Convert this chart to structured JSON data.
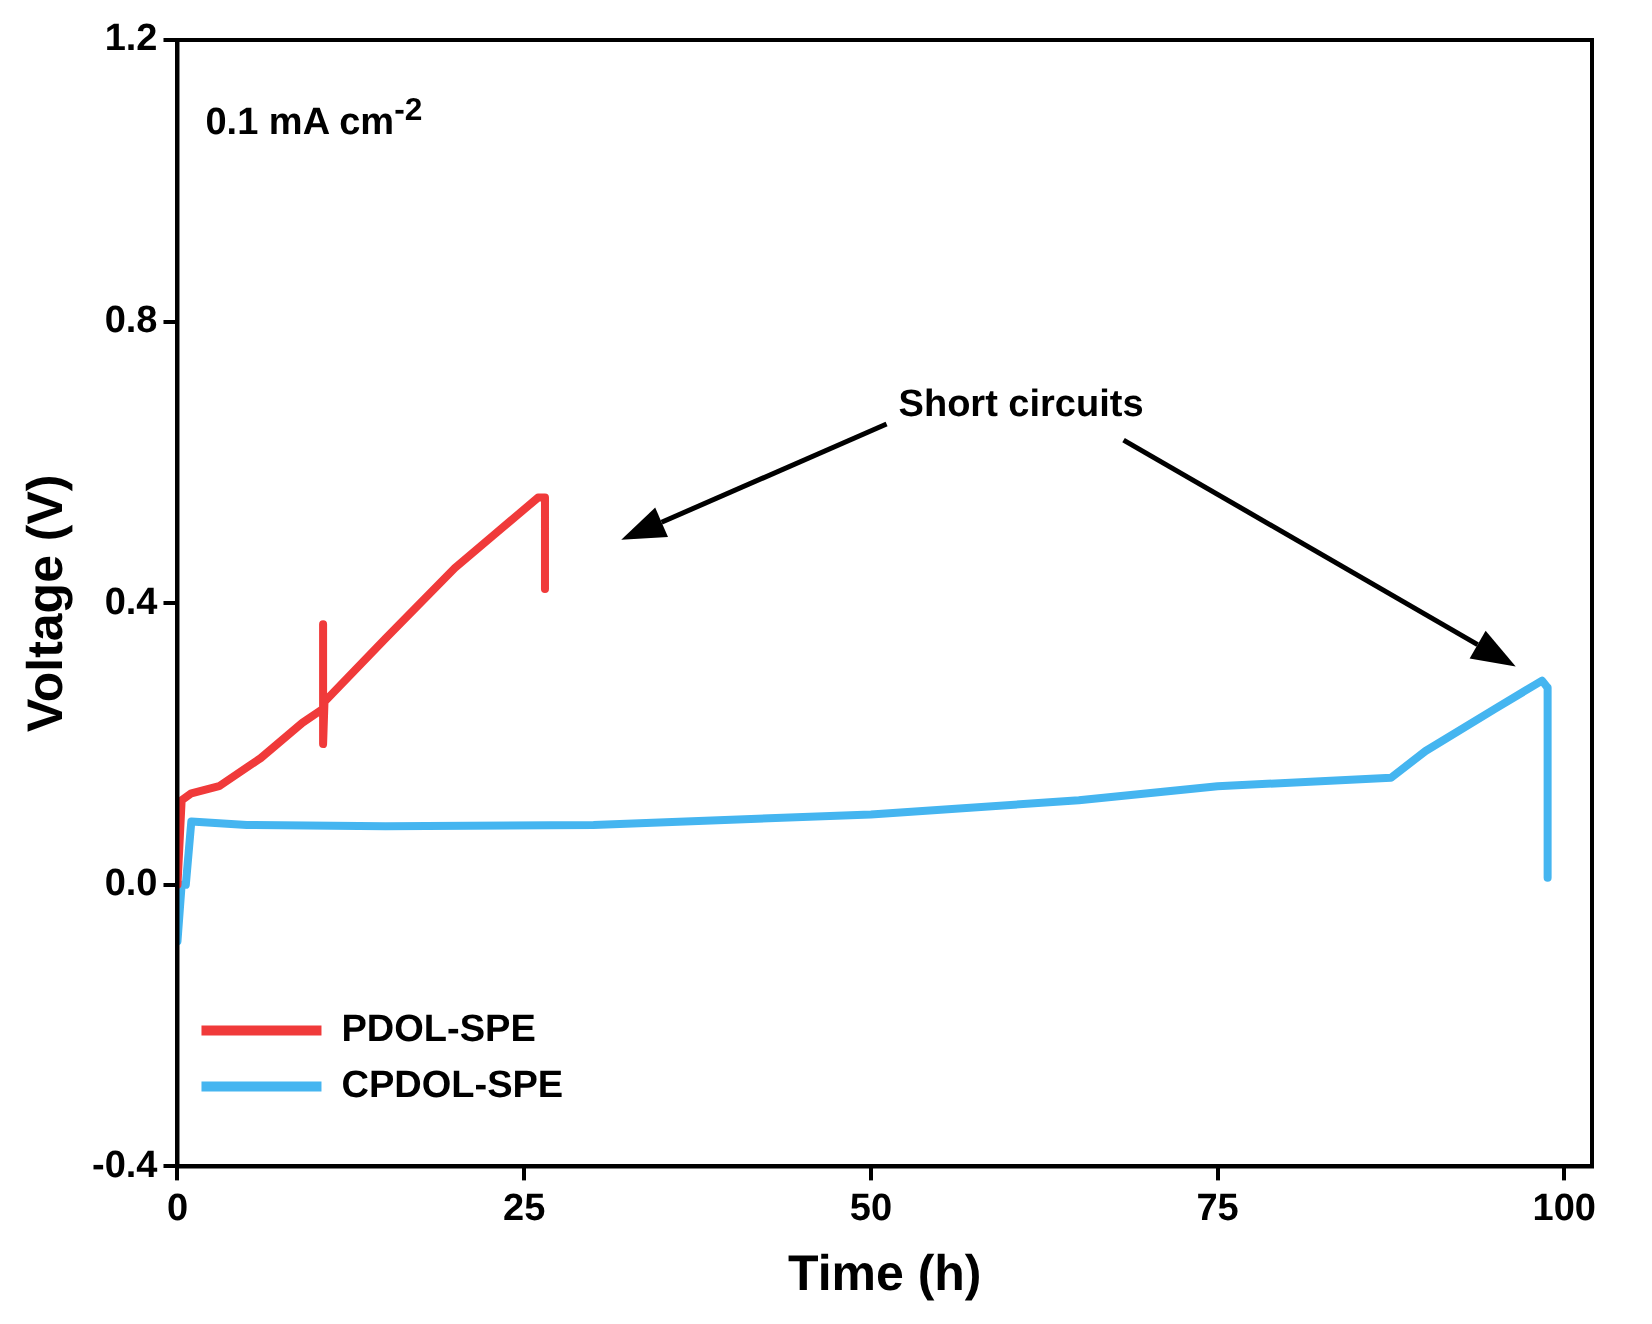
{
  "chart_data": {
    "type": "line",
    "xlabel": "Time (h)",
    "ylabel": "Voltage (V)",
    "xlim": [
      0,
      102
    ],
    "xticks": [
      0,
      25,
      50,
      75,
      100
    ],
    "ylim": [
      -0.4,
      1.2
    ],
    "yticks": [
      -0.4,
      {
        "value": 0,
        "label": "0.0"
      },
      0.4,
      0.8,
      1.2
    ],
    "grid": false,
    "legend": "bottom left",
    "marker": "none",
    "line_style": "solid",
    "annotations": [
      "0.1 mA cm$^{-2}$",
      "Short circuits"
    ],
    "series": [
      {
        "name": "PDOL-SPE",
        "color": "#f03a3a",
        "x": [
          0,
          0.3,
          1,
          3,
          6,
          9,
          10.5,
          10.5,
          10.5,
          10.6,
          15,
          20,
          23,
          26,
          26.5,
          26.5
        ],
        "values": [
          0.0,
          0.12,
          0.13,
          0.14,
          0.18,
          0.23,
          0.25,
          0.37,
          0.2,
          0.26,
          0.35,
          0.45,
          0.5,
          0.55,
          0.55,
          0.42
        ]
      },
      {
        "name": "CPDOL-SPE",
        "color": "#45b5f0",
        "x": [
          0,
          0.3,
          0.6,
          1,
          5,
          15,
          30,
          50,
          65,
          75,
          87.5,
          90,
          95,
          98.4,
          98.8,
          98.8
        ],
        "values": [
          -0.08,
          0.0,
          0.0,
          0.09,
          0.085,
          0.083,
          0.085,
          0.1,
          0.12,
          0.14,
          0.152,
          0.19,
          0.25,
          0.29,
          0.28,
          0.01
        ]
      }
    ]
  }
}
